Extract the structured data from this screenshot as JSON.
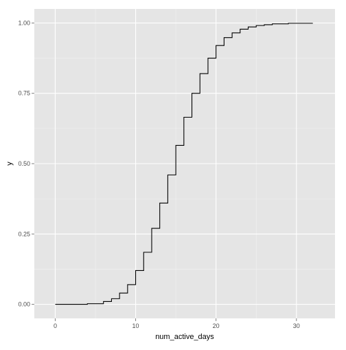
{
  "chart_data": {
    "type": "line",
    "subtype": "step-ecdf",
    "xlabel": "num_active_days",
    "ylabel": "y",
    "xlim": [
      -2.6,
      34.8
    ],
    "ylim": [
      -0.05,
      1.05
    ],
    "x_ticks": [
      0,
      10,
      20,
      30
    ],
    "x_tick_labels": [
      "0",
      "10",
      "20",
      "30"
    ],
    "y_ticks": [
      0,
      0.25,
      0.5,
      0.75,
      1
    ],
    "y_tick_labels": [
      "0.00",
      "0.25",
      "0.50",
      "0.75",
      "1.00"
    ],
    "grid": true,
    "legend": "none",
    "colors": {
      "panel": "#e5e5e5",
      "grid_major": "#ffffff",
      "grid_minor": "#f2f2f2",
      "line": "#000000"
    },
    "steps": [
      {
        "x": 0,
        "y": 0.0
      },
      {
        "x": 4,
        "y": 0.002
      },
      {
        "x": 6,
        "y": 0.01
      },
      {
        "x": 7,
        "y": 0.02
      },
      {
        "x": 8,
        "y": 0.04
      },
      {
        "x": 9,
        "y": 0.07
      },
      {
        "x": 10,
        "y": 0.12
      },
      {
        "x": 11,
        "y": 0.185
      },
      {
        "x": 12,
        "y": 0.27
      },
      {
        "x": 13,
        "y": 0.36
      },
      {
        "x": 14,
        "y": 0.46
      },
      {
        "x": 15,
        "y": 0.565
      },
      {
        "x": 16,
        "y": 0.665
      },
      {
        "x": 17,
        "y": 0.75
      },
      {
        "x": 18,
        "y": 0.82
      },
      {
        "x": 19,
        "y": 0.875
      },
      {
        "x": 20,
        "y": 0.92
      },
      {
        "x": 21,
        "y": 0.948
      },
      {
        "x": 22,
        "y": 0.965
      },
      {
        "x": 23,
        "y": 0.978
      },
      {
        "x": 24,
        "y": 0.986
      },
      {
        "x": 25,
        "y": 0.991
      },
      {
        "x": 26,
        "y": 0.994
      },
      {
        "x": 27,
        "y": 0.997
      },
      {
        "x": 29,
        "y": 0.999
      },
      {
        "x": 32,
        "y": 1.0
      }
    ]
  }
}
